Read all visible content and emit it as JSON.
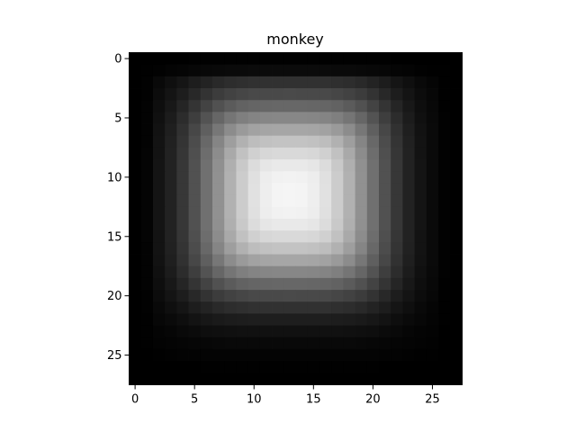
{
  "chart_data": {
    "type": "heatmap",
    "title": "monkey",
    "xlabel": "",
    "ylabel": "",
    "colormap": "gray",
    "grid": false,
    "rows": 28,
    "cols": 28,
    "xlim": [
      -0.5,
      27.5
    ],
    "ylim": [
      27.5,
      -0.5
    ],
    "x_ticks": [
      0,
      5,
      10,
      15,
      20,
      25
    ],
    "y_ticks": [
      0,
      5,
      10,
      15,
      20,
      25
    ],
    "intensity_model": {
      "description": "approximate mean-image intensity (0-1) read from the grayscale heatmap",
      "peak": 1.0,
      "center_row": 11.5,
      "center_col": 13.0,
      "spread_x": 7.4,
      "spread_y": 7.6,
      "falloff": 2.6
    }
  }
}
